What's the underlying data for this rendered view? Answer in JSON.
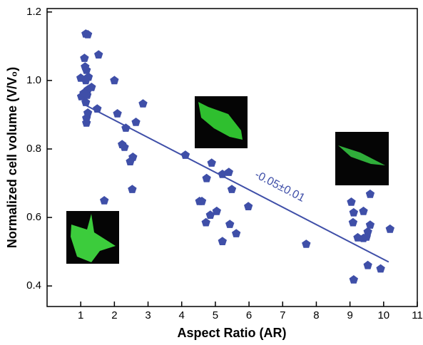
{
  "chart_data": {
    "type": "scatter",
    "x_label": "Aspect Ratio  (AR)",
    "y_label": "Normalized cell volume   (V/V₀)",
    "annotation": "-0.05±0.01",
    "color": "#3f4fa8",
    "xlim": [
      0,
      11
    ],
    "ylim": [
      0.34,
      1.21
    ],
    "xticks": [
      1,
      2,
      3,
      4,
      5,
      6,
      7,
      8,
      9,
      10,
      11
    ],
    "yticks": [
      0.4,
      0.6,
      0.8,
      {
        "value": 1.0,
        "label": "1.0"
      },
      1.2
    ],
    "x": [
      1.15,
      1.21,
      1.53,
      1.11,
      1.13,
      1.17,
      1.23,
      1.0,
      1.15,
      1.32,
      1.21,
      1.09,
      1.02,
      1.19,
      1.15,
      1.21,
      1.17,
      1.17,
      1.49,
      2.0,
      2.09,
      2.85,
      2.64,
      2.34,
      2.23,
      2.3,
      2.55,
      2.47,
      2.53,
      1.7,
      4.11,
      4.89,
      4.74,
      4.53,
      4.6,
      4.85,
      4.72,
      5.04,
      5.21,
      5.4,
      5.49,
      5.98,
      5.43,
      5.62,
      5.21,
      7.7,
      9.04,
      9.11,
      9.4,
      9.6,
      9.09,
      9.6,
      9.23,
      9.4,
      9.53,
      9.49,
      10.19,
      9.53,
      9.91,
      9.11
    ],
    "y": [
      1.136,
      1.134,
      1.075,
      1.065,
      1.04,
      1.03,
      1.01,
      1.007,
      1.0,
      0.98,
      0.973,
      0.963,
      0.953,
      0.957,
      0.936,
      0.905,
      0.89,
      0.876,
      0.917,
      1.0,
      0.903,
      0.932,
      0.878,
      0.861,
      0.813,
      0.805,
      0.776,
      0.763,
      0.682,
      0.649,
      0.782,
      0.759,
      0.714,
      0.647,
      0.647,
      0.607,
      0.585,
      0.618,
      0.726,
      0.732,
      0.682,
      0.632,
      0.58,
      0.553,
      0.53,
      0.522,
      0.645,
      0.614,
      0.618,
      0.668,
      0.585,
      0.578,
      0.541,
      0.539,
      0.558,
      0.543,
      0.566,
      0.46,
      0.45,
      0.418
    ],
    "fit": {
      "x": [
        1.1,
        10.15
      ],
      "y": [
        0.93,
        0.47
      ]
    }
  }
}
